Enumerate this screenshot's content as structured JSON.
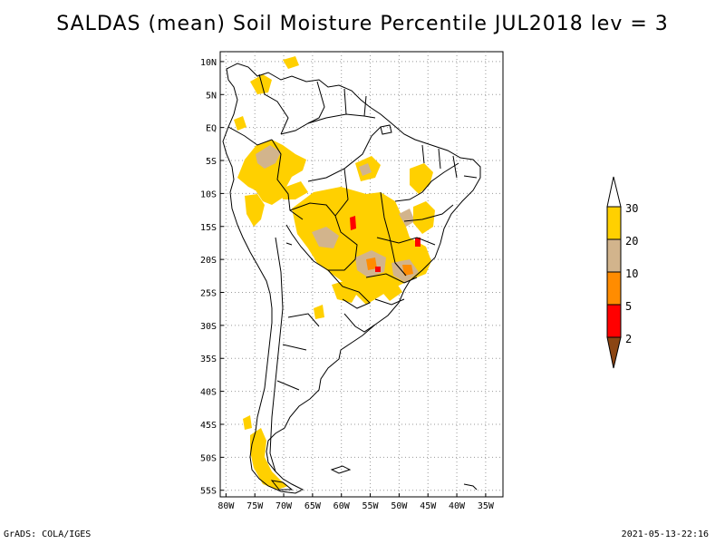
{
  "title": "SALDAS (mean) Soil Moisture Percentile JUL2018 lev = 3",
  "map": {
    "lat_ticks": [
      10,
      5,
      0,
      -5,
      -10,
      -15,
      -20,
      -25,
      -30,
      -35,
      -40,
      -45,
      -50,
      -55
    ],
    "lat_labels": [
      "10N",
      "5N",
      "EQ",
      "5S",
      "10S",
      "15S",
      "20S",
      "25S",
      "30S",
      "35S",
      "40S",
      "45S",
      "50S",
      "55S"
    ],
    "lon_ticks": [
      -80,
      -75,
      -70,
      -65,
      -60,
      -55,
      -50,
      -45,
      -40,
      -35
    ],
    "lon_labels": [
      "80W",
      "75W",
      "70W",
      "65W",
      "60W",
      "55W",
      "50W",
      "45W",
      "40W",
      "35W"
    ],
    "lon_range": [
      -81,
      -32
    ],
    "lat_range": [
      -56,
      11.5
    ]
  },
  "colorbar": {
    "labels": [
      "30",
      "20",
      "10",
      "5",
      "2"
    ],
    "colors": {
      "above": "#ffffff",
      "c20_30": "#ffd000",
      "c10_20": "#d2b48c",
      "c5_10": "#ff8c00",
      "c2_5": "#ff0000",
      "below": "#8b4513"
    }
  },
  "footer": {
    "credit": "GrADS: COLA/IGES",
    "timestamp": "2021-05-13-22:16"
  }
}
